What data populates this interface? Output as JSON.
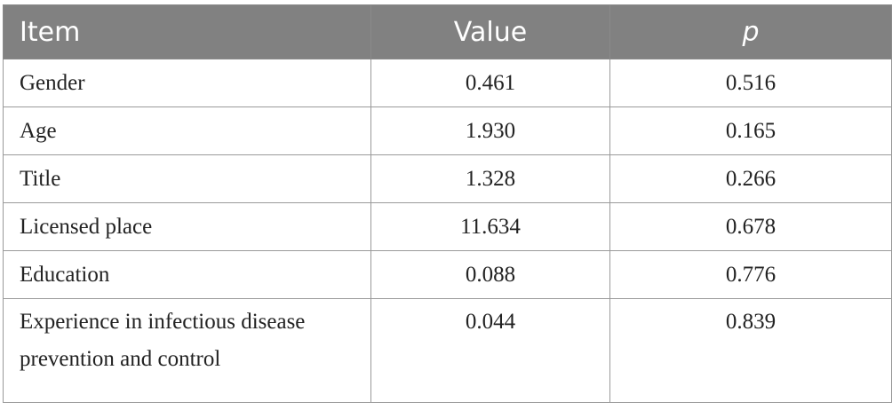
{
  "header": {
    "item": "Item",
    "value": "Value",
    "p": "p"
  },
  "rows": [
    {
      "item": "Gender",
      "value": "0.461",
      "p": "0.516"
    },
    {
      "item": "Age",
      "value": "1.930",
      "p": "0.165"
    },
    {
      "item": "Title",
      "value": "1.328",
      "p": "0.266"
    },
    {
      "item": "Licensed place",
      "value": "11.634",
      "p": "0.678"
    },
    {
      "item": "Education",
      "value": "0.088",
      "p": "0.776"
    },
    {
      "item": "Experience in infectious disease prevention and control",
      "value": "0.044",
      "p": "0.839"
    }
  ]
}
